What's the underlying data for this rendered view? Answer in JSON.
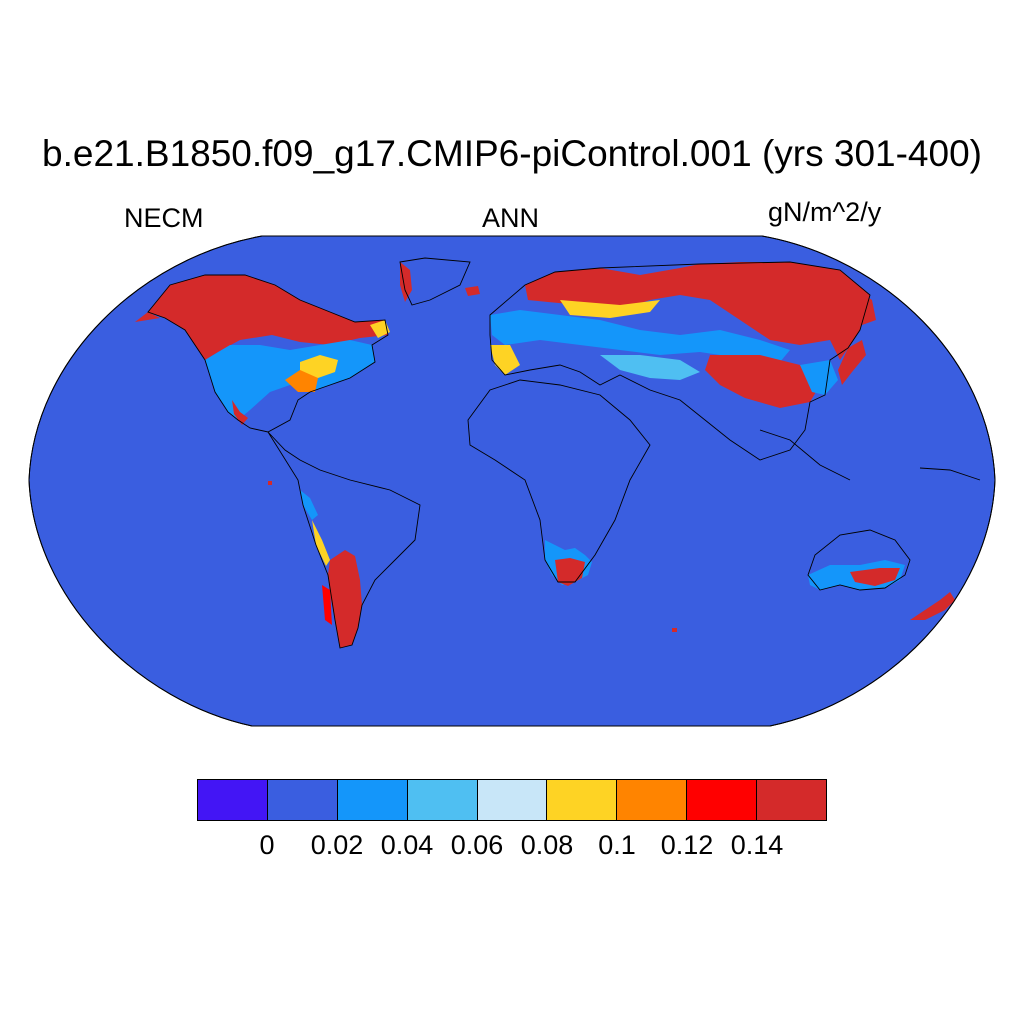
{
  "title": "b.e21.B1850.f09_g17.CMIP6-piControl.001 (yrs 301-400)",
  "left_subtitle": "NECM",
  "center_subtitle": "ANN",
  "right_subtitle": "gN/m^2/y",
  "map": {
    "projection": "Robinson",
    "ocean_color": "#3a5ee0",
    "coastline_color": "#000000"
  },
  "colorbar": {
    "colors": [
      "#4315f5",
      "#3a5ee0",
      "#1496fa",
      "#4fbff2",
      "#c8e6f8",
      "#fed324",
      "#ff8400",
      "#ff0000",
      "#d42a2a"
    ],
    "labels": [
      "0",
      "0.02",
      "0.04",
      "0.06",
      "0.08",
      "0.1",
      "0.12",
      "0.14"
    ]
  }
}
